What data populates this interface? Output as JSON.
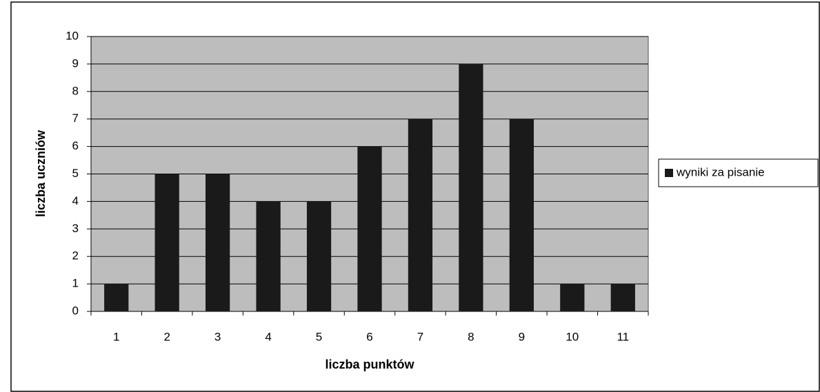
{
  "chart_data": {
    "type": "bar",
    "categories": [
      "1",
      "2",
      "3",
      "4",
      "5",
      "6",
      "7",
      "8",
      "9",
      "10",
      "11"
    ],
    "series": [
      {
        "name": "wyniki za pisanie",
        "color": "#1a1a1a",
        "values": [
          1,
          5,
          5,
          4,
          4,
          6,
          7,
          9,
          7,
          1,
          1
        ]
      }
    ],
    "xlabel": "liczba punktów",
    "ylabel": "liczba uczniów",
    "ylim": [
      0,
      10
    ],
    "yticks": [
      0,
      1,
      2,
      3,
      4,
      5,
      6,
      7,
      8,
      9,
      10
    ],
    "grid": true,
    "legend": "right",
    "plot_background": "#bdbdbd"
  }
}
